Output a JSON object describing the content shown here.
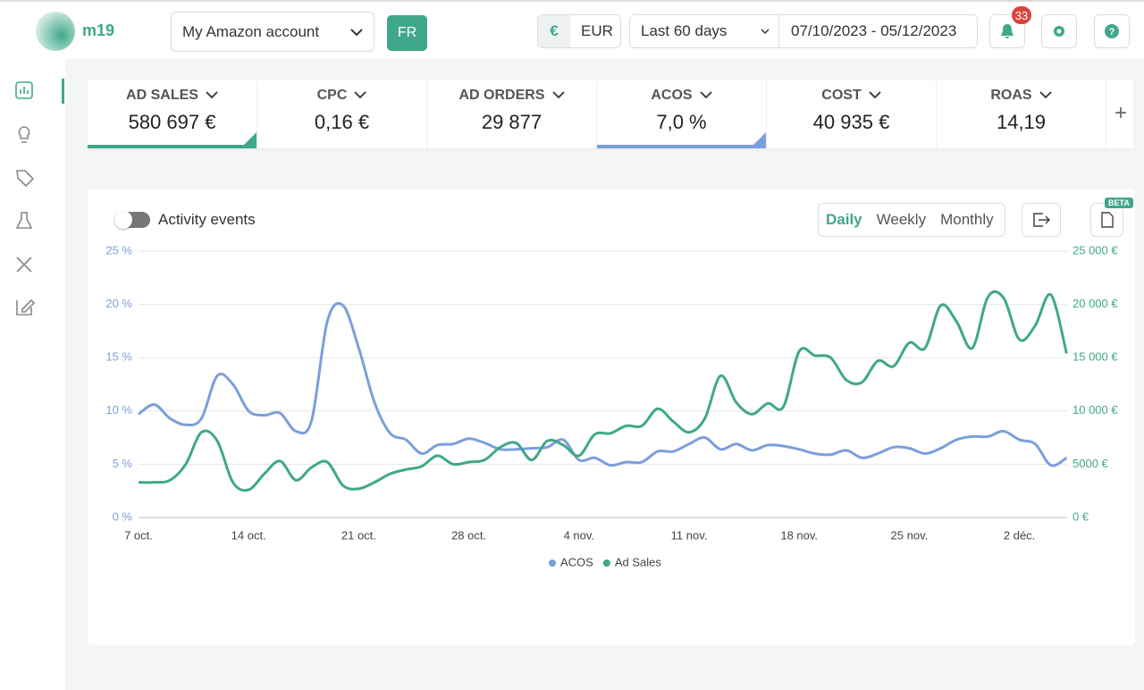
{
  "header": {
    "logo": "m19",
    "account": "My Amazon account",
    "country": "FR",
    "currency_symbol": "€",
    "currency": "EUR",
    "period": "Last 60 days",
    "date_range": "07/10/2023 - 05/12/2023",
    "notifications": "33"
  },
  "kpis": [
    {
      "label": "AD SALES",
      "value": "580 697 €"
    },
    {
      "label": "CPC",
      "value": "0,16 €"
    },
    {
      "label": "AD ORDERS",
      "value": "29 877"
    },
    {
      "label": "ACOS",
      "value": "7,0 %"
    },
    {
      "label": "COST",
      "value": "40 935 €"
    },
    {
      "label": "ROAS",
      "value": "14,19"
    }
  ],
  "controls": {
    "activity": "Activity events",
    "periods": [
      "Daily",
      "Weekly",
      "Monthly"
    ],
    "beta": "BETA"
  },
  "chart_data": {
    "type": "line",
    "categories": [
      "7 oct.",
      null,
      null,
      null,
      null,
      null,
      null,
      "14 oct.",
      null,
      null,
      null,
      null,
      null,
      null,
      "21 oct.",
      null,
      null,
      null,
      null,
      null,
      null,
      "28 oct.",
      null,
      null,
      null,
      null,
      null,
      null,
      "4 nov.",
      null,
      null,
      null,
      null,
      null,
      null,
      "11 nov.",
      null,
      null,
      null,
      null,
      null,
      null,
      "18 nov.",
      null,
      null,
      null,
      null,
      null,
      null,
      "25 nov.",
      null,
      null,
      null,
      null,
      null,
      null,
      "2 déc.",
      null,
      null,
      null
    ],
    "series": [
      {
        "name": "ACOS",
        "color": "#7b9fdb",
        "values": [
          9.7,
          10.6,
          9.3,
          8.7,
          9.3,
          13.3,
          12.5,
          10.0,
          9.6,
          9.8,
          8.1,
          9.1,
          18.4,
          19.9,
          15.9,
          10.8,
          7.9,
          7.3,
          6.0,
          6.8,
          6.9,
          7.4,
          7.0,
          6.4,
          6.4,
          6.5,
          6.6,
          7.3,
          5.4,
          5.6,
          4.9,
          5.2,
          5.2,
          6.2,
          6.2,
          6.9,
          7.5,
          6.4,
          6.9,
          6.3,
          6.8,
          6.7,
          6.4,
          6.0,
          5.9,
          6.3,
          5.6,
          6.0,
          6.6,
          6.5,
          6.0,
          6.5,
          7.3,
          7.6,
          7.6,
          8.1,
          7.3,
          6.9,
          4.9,
          5.6
        ]
      },
      {
        "name": "Ad Sales",
        "color": "#3fa88a",
        "axis": "y2",
        "values": [
          3300,
          3300,
          3500,
          5000,
          8000,
          7200,
          3300,
          2600,
          4100,
          5300,
          3500,
          4700,
          5200,
          3000,
          2700,
          3300,
          4100,
          4500,
          4800,
          5800,
          5000,
          5200,
          5400,
          6600,
          7000,
          5400,
          7200,
          6800,
          5800,
          7800,
          7900,
          8600,
          8600,
          10200,
          9000,
          8000,
          9300,
          13300,
          10800,
          9700,
          10700,
          10400,
          15600,
          15200,
          15000,
          12900,
          12700,
          14700,
          14200,
          16400,
          15900,
          19900,
          18400,
          15900,
          20700,
          20600,
          16700,
          18000,
          20900,
          15400
        ]
      }
    ],
    "ylim": [
      0,
      25
    ],
    "yticks": [
      {
        "value": 0,
        "label": "0 %"
      },
      {
        "value": 5,
        "label": "5 %"
      },
      {
        "value": 10,
        "label": "10 %"
      },
      {
        "value": 15,
        "label": "15 %"
      },
      {
        "value": 20,
        "label": "20 %"
      },
      {
        "value": 25,
        "label": "25 %"
      }
    ],
    "y2lim": [
      0,
      25000
    ],
    "y2ticks": [
      {
        "value": 0,
        "label": "0 €"
      },
      {
        "value": 5000,
        "label": "5000 €"
      },
      {
        "value": 10000,
        "label": "10 000 €"
      },
      {
        "value": 15000,
        "label": "15 000 €"
      },
      {
        "value": 20000,
        "label": "20 000 €"
      },
      {
        "value": 25000,
        "label": "25 000 €"
      }
    ],
    "grid": true,
    "legend": "bottom"
  }
}
